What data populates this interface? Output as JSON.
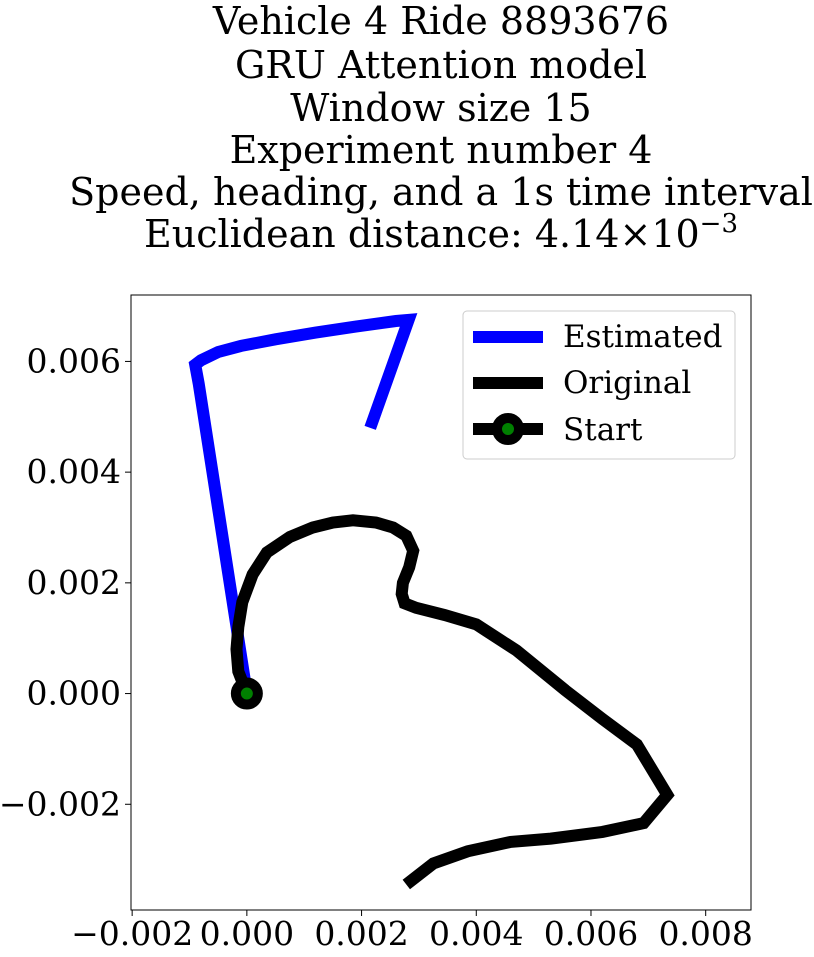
{
  "chart_data": {
    "type": "line",
    "title_lines": [
      "Vehicle 4 Ride 8893676",
      "GRU Attention model",
      "Window size 15",
      "Experiment number 4",
      "Speed, heading, and a 1s time interval"
    ],
    "title_distance": {
      "prefix": "Euclidean distance: 4.14",
      "times": "×",
      "base": "10",
      "exponent": "−3"
    },
    "xlabel": "",
    "ylabel": "",
    "xlim": [
      -0.00202,
      0.00879
    ],
    "ylim": [
      -0.00391,
      0.0072
    ],
    "x_ticks": [
      {
        "value": -0.002,
        "label": "−0.002"
      },
      {
        "value": 0.0,
        "label": "0.000"
      },
      {
        "value": 0.002,
        "label": "0.002"
      },
      {
        "value": 0.004,
        "label": "0.004"
      },
      {
        "value": 0.006,
        "label": "0.006"
      },
      {
        "value": 0.008,
        "label": "0.008"
      }
    ],
    "y_ticks": [
      {
        "value": -0.002,
        "label": "−0.002"
      },
      {
        "value": 0.0,
        "label": "0.000"
      },
      {
        "value": 0.002,
        "label": "0.002"
      },
      {
        "value": 0.004,
        "label": "0.004"
      },
      {
        "value": 0.006,
        "label": "0.006"
      }
    ],
    "grid": false,
    "legend_position": "top-right",
    "series": [
      {
        "name": "Estimated",
        "color": "#0000ff",
        "x": [
          0.0,
          -0.00084,
          -0.0009,
          -0.0008,
          -0.0005,
          -0.0001,
          0.0005,
          0.0012,
          0.0019,
          0.0026,
          0.00282,
          0.00215
        ],
        "y": [
          0.0,
          0.0056,
          0.00594,
          0.00602,
          0.00617,
          0.00628,
          0.0064,
          0.00652,
          0.00663,
          0.00673,
          0.00675,
          0.0048
        ]
      },
      {
        "name": "Original",
        "color": "#000000",
        "x": [
          0.0,
          -0.00015,
          -0.00018,
          -0.00015,
          -8e-05,
          0.0001,
          0.00035,
          0.00075,
          0.00115,
          0.0015,
          0.00185,
          0.00225,
          0.00255,
          0.00278,
          0.0029,
          0.00283,
          0.00272,
          0.0027,
          0.00275,
          0.00295,
          0.00345,
          0.004,
          0.0047,
          0.00555,
          0.0062,
          0.0068,
          0.00733,
          0.00692,
          0.0062,
          0.0053,
          0.0046,
          0.00385,
          0.00325,
          0.00278
        ],
        "y": [
          0.0,
          0.0004,
          0.0008,
          0.0012,
          0.00165,
          0.00215,
          0.00255,
          0.00283,
          0.003,
          0.00309,
          0.00313,
          0.00309,
          0.003,
          0.00285,
          0.00258,
          0.00228,
          0.002,
          0.0018,
          0.00163,
          0.00155,
          0.00142,
          0.00125,
          0.00078,
          6e-05,
          -0.00046,
          -0.00092,
          -0.00183,
          -0.00234,
          -0.0025,
          -0.00262,
          -0.00268,
          -0.00285,
          -0.00307,
          -0.00345
        ]
      },
      {
        "name": "Start",
        "color": "#000000",
        "marker_fill": "#008000",
        "x": [
          0.0
        ],
        "y": [
          0.0
        ]
      }
    ]
  }
}
